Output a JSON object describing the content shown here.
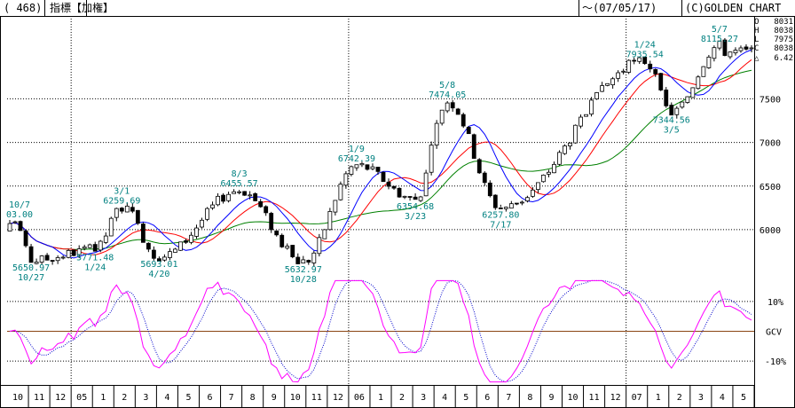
{
  "header": {
    "code": "( 468)",
    "title": "指標【加権】",
    "date_range": "～(07/05/17)",
    "copyright": "(C)GOLDEN CHART"
  },
  "ohlc": [
    {
      "key": "O",
      "value": "8031"
    },
    {
      "key": "H",
      "value": "8038"
    },
    {
      "key": "L",
      "value": "7975"
    },
    {
      "key": "C",
      "value": "8038"
    },
    {
      "key": "△",
      "value": "6.42"
    }
  ],
  "colors": {
    "ma_short": "#0000ff",
    "ma_mid": "#ff0000",
    "ma_long": "#008000",
    "oscillator": "#ff00ff",
    "oscillator_signal": "#0000cc",
    "annotation": "#008080",
    "grid": "#000000"
  },
  "chart_data": [
    {
      "type": "candlestick",
      "title": "",
      "y_ticks": [
        6000,
        6500,
        7000,
        7500
      ],
      "ylim": [
        5450,
        8450
      ],
      "x_month_labels": [
        "10",
        "11",
        "12",
        "05",
        "1",
        "2",
        "3",
        "4",
        "5",
        "6",
        "7",
        "8",
        "9",
        "10",
        "11",
        "12",
        "06",
        "1",
        "2",
        "3",
        "4",
        "5",
        "6",
        "7",
        "8",
        "9",
        "10",
        "11",
        "12",
        "07",
        "1",
        "2",
        "3",
        "4",
        "5"
      ],
      "annotations": [
        {
          "value": "10/7",
          "pos": "above"
        },
        {
          "value": "03.00",
          "pos": "above"
        },
        {
          "value": "5650.97",
          "pos": "below"
        },
        {
          "value": "10/27",
          "pos": "below"
        },
        {
          "value": "5771.48",
          "pos": "below"
        },
        {
          "value": "1/24",
          "pos": "below"
        },
        {
          "value": "3/1",
          "pos": "above"
        },
        {
          "value": "6259.69",
          "pos": "above"
        },
        {
          "value": "5693.01",
          "pos": "below"
        },
        {
          "value": "4/20",
          "pos": "below"
        },
        {
          "value": "8/3",
          "pos": "above"
        },
        {
          "value": "6455.57",
          "pos": "above"
        },
        {
          "value": "5632.97",
          "pos": "below"
        },
        {
          "value": "10/28",
          "pos": "below"
        },
        {
          "value": "1/9",
          "pos": "above"
        },
        {
          "value": "6742.39",
          "pos": "above"
        },
        {
          "value": "6354.68",
          "pos": "below"
        },
        {
          "value": "3/23",
          "pos": "below"
        },
        {
          "value": "5/8",
          "pos": "above"
        },
        {
          "value": "7474.05",
          "pos": "above"
        },
        {
          "value": "6257.80",
          "pos": "below"
        },
        {
          "value": "7/17",
          "pos": "below"
        },
        {
          "value": "1/24",
          "pos": "above"
        },
        {
          "value": "7935.54",
          "pos": "above"
        },
        {
          "value": "7344.56",
          "pos": "below"
        },
        {
          "value": "3/5",
          "pos": "below"
        },
        {
          "value": "5/7",
          "pos": "above"
        },
        {
          "value": "8115.27",
          "pos": "above"
        }
      ],
      "key_points": [
        {
          "label": "10/7/2004 high",
          "week": 1,
          "value": 6103.0
        },
        {
          "label": "10/27/2004 low",
          "week": 4,
          "value": 5650.97
        },
        {
          "label": "1/24/2005 low",
          "week": 16,
          "value": 5771.48
        },
        {
          "label": "3/1/2005 high",
          "week": 21,
          "value": 6259.69
        },
        {
          "label": "4/20/2005 low",
          "week": 28,
          "value": 5693.01
        },
        {
          "label": "8/3/2005 high",
          "week": 43,
          "value": 6455.57
        },
        {
          "label": "10/28/2005 low",
          "week": 55,
          "value": 5632.97
        },
        {
          "label": "1/9/2006 high",
          "week": 65,
          "value": 6742.39
        },
        {
          "label": "3/23/2006 low",
          "week": 76,
          "value": 6354.68
        },
        {
          "label": "5/8/2006 high",
          "week": 82,
          "value": 7474.05
        },
        {
          "label": "7/17/2006 low",
          "week": 92,
          "value": 6257.8
        },
        {
          "label": "1/24/2007 high",
          "week": 119,
          "value": 7935.54
        },
        {
          "label": "3/5/2007 low",
          "week": 124,
          "value": 7344.56
        },
        {
          "label": "5/7/2007 high",
          "week": 133,
          "value": 8115.27
        }
      ],
      "series": [
        {
          "name": "",
          "role": "price-weekly"
        },
        {
          "name": "",
          "role": "ma-short"
        },
        {
          "name": "",
          "role": "ma-mid"
        },
        {
          "name": "",
          "role": "ma-long"
        }
      ]
    },
    {
      "type": "line",
      "title": "GCV",
      "y_ticks": [
        "10%",
        "GCV",
        "-10%"
      ],
      "ylim": [
        -18,
        18
      ],
      "series": [
        {
          "name": "",
          "role": "oscillator"
        },
        {
          "name": "",
          "role": "signal"
        }
      ]
    }
  ]
}
